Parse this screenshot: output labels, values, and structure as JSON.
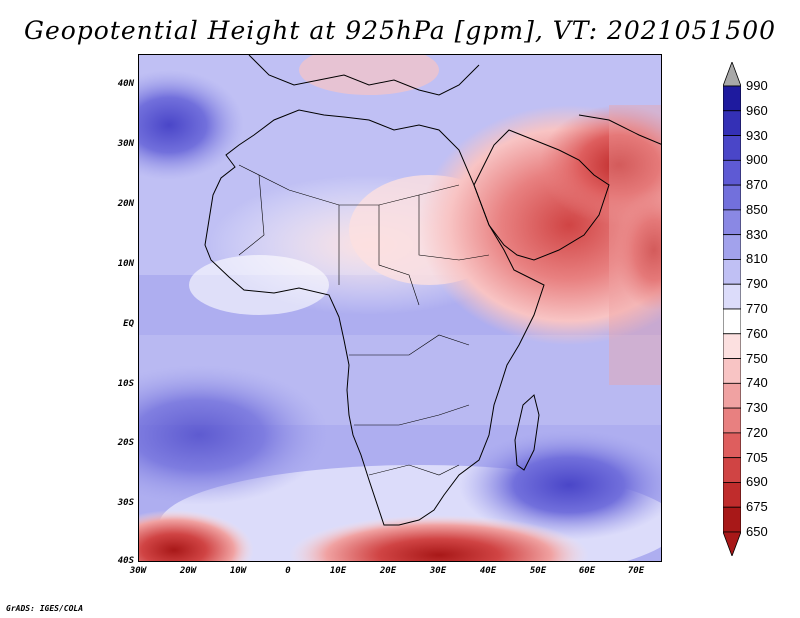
{
  "title": "Geopotential Height at 925hPa [gpm], VT: 2021051500",
  "credit": "GrADS: IGES/COLA",
  "lat_labels": [
    "40N",
    "30N",
    "20N",
    "10N",
    "EQ",
    "10S",
    "20S",
    "30S",
    "40S"
  ],
  "lon_labels": [
    "30W",
    "20W",
    "10W",
    "0",
    "10E",
    "20E",
    "30E",
    "40E",
    "50E",
    "60E",
    "70E"
  ],
  "colorbar": {
    "levels": [
      "990",
      "960",
      "930",
      "900",
      "870",
      "850",
      "830",
      "810",
      "790",
      "770",
      "760",
      "750",
      "740",
      "730",
      "720",
      "705",
      "690",
      "675",
      "650"
    ],
    "colors": [
      "#a8a8a8",
      "#1e1a9e",
      "#3430b6",
      "#4a46c8",
      "#5e5ad4",
      "#7270dc",
      "#8a88e4",
      "#a2a2ec",
      "#c0c0f4",
      "#dcdcfa",
      "#ffffff",
      "#fce0e0",
      "#f8c4c4",
      "#f0a2a2",
      "#e88080",
      "#de5e5e",
      "#d04444",
      "#c02c2c",
      "#a81818",
      "#a81818"
    ]
  },
  "map": {
    "extent_lon": [
      -30,
      75
    ],
    "extent_lat": [
      -40,
      45
    ]
  }
}
